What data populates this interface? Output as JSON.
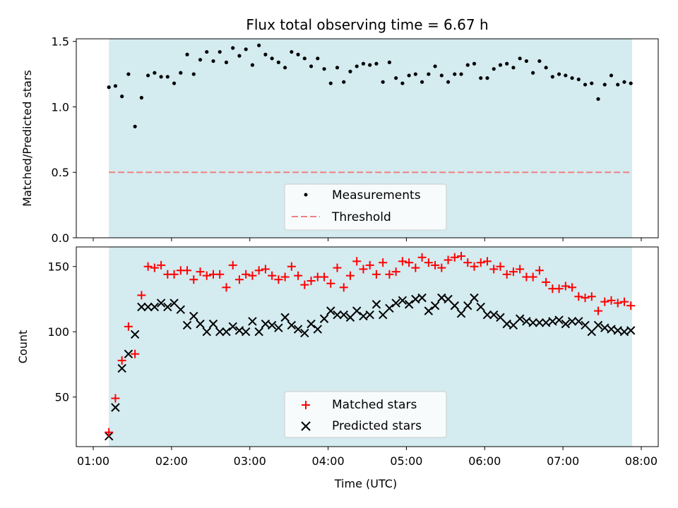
{
  "chart_data": [
    {
      "type": "scatter",
      "title": "Flux total observing time = 6.67 h",
      "xlabel": "",
      "ylabel": "Matched/Predicted stars",
      "xlim": [
        "01:00",
        "08:00"
      ],
      "ylim": [
        0,
        1.5
      ],
      "yticks": [
        "0.0",
        "0.5",
        "1.0",
        "1.5"
      ],
      "shaded_interval": [
        "01:12",
        "07:53"
      ],
      "shade_color": "#d4ebf0",
      "threshold": {
        "name": "Threshold",
        "value": 0.5,
        "color": "#f08080",
        "style": "dashed"
      },
      "legend": [
        "Measurements",
        "Threshold"
      ],
      "legend_position": "lower center",
      "series": [
        {
          "name": "Measurements",
          "color": "#000000",
          "x": [
            "01:12",
            "01:17",
            "01:22",
            "01:27",
            "01:32",
            "01:37",
            "01:42",
            "01:47",
            "01:52",
            "01:57",
            "02:02",
            "02:07",
            "02:12",
            "02:17",
            "02:22",
            "02:27",
            "02:32",
            "02:37",
            "02:42",
            "02:47",
            "02:52",
            "02:57",
            "03:02",
            "03:07",
            "03:12",
            "03:17",
            "03:22",
            "03:27",
            "03:32",
            "03:37",
            "03:42",
            "03:47",
            "03:52",
            "03:57",
            "04:02",
            "04:07",
            "04:12",
            "04:17",
            "04:22",
            "04:27",
            "04:32",
            "04:37",
            "04:42",
            "04:47",
            "04:52",
            "04:57",
            "05:02",
            "05:07",
            "05:12",
            "05:17",
            "05:22",
            "05:27",
            "05:32",
            "05:37",
            "05:42",
            "05:47",
            "05:52",
            "05:57",
            "06:02",
            "06:07",
            "06:12",
            "06:17",
            "06:22",
            "06:27",
            "06:32",
            "06:37",
            "06:42",
            "06:47",
            "06:52",
            "06:57",
            "07:02",
            "07:07",
            "07:12",
            "07:17",
            "07:22",
            "07:27",
            "07:32",
            "07:37",
            "07:42",
            "07:47",
            "07:52"
          ],
          "y": [
            1.15,
            1.16,
            1.08,
            1.25,
            0.85,
            1.07,
            1.24,
            1.26,
            1.23,
            1.23,
            1.18,
            1.26,
            1.4,
            1.25,
            1.36,
            1.42,
            1.35,
            1.42,
            1.34,
            1.45,
            1.39,
            1.44,
            1.32,
            1.47,
            1.4,
            1.37,
            1.34,
            1.3,
            1.42,
            1.4,
            1.37,
            1.31,
            1.37,
            1.29,
            1.18,
            1.3,
            1.19,
            1.27,
            1.31,
            1.33,
            1.32,
            1.33,
            1.19,
            1.34,
            1.22,
            1.18,
            1.24,
            1.25,
            1.19,
            1.25,
            1.31,
            1.24,
            1.19,
            1.25,
            1.25,
            1.32,
            1.33,
            1.22,
            1.22,
            1.29,
            1.32,
            1.33,
            1.3,
            1.37,
            1.35,
            1.26,
            1.35,
            1.3,
            1.23,
            1.25,
            1.24,
            1.22,
            1.21,
            1.17,
            1.18,
            1.06,
            1.17,
            1.24,
            1.17,
            1.19,
            1.18
          ]
        }
      ]
    },
    {
      "type": "scatter",
      "title": "",
      "xlabel": "Time (UTC)",
      "ylabel": "Count",
      "xlim": [
        "01:00",
        "08:00"
      ],
      "xticks": [
        "01:00",
        "02:00",
        "03:00",
        "04:00",
        "05:00",
        "06:00",
        "07:00",
        "08:00"
      ],
      "ylim": [
        12,
        165
      ],
      "yticks": [
        "50",
        "100",
        "150"
      ],
      "shaded_interval": [
        "01:12",
        "07:53"
      ],
      "shade_color": "#d4ebf0",
      "legend": [
        "Matched stars",
        "Predicted stars"
      ],
      "legend_position": "lower center",
      "series": [
        {
          "name": "Matched stars",
          "marker": "plus",
          "color": "#ff0000",
          "x": [
            "01:12",
            "01:17",
            "01:22",
            "01:27",
            "01:32",
            "01:37",
            "01:42",
            "01:47",
            "01:52",
            "01:57",
            "02:02",
            "02:07",
            "02:12",
            "02:17",
            "02:22",
            "02:27",
            "02:32",
            "02:37",
            "02:42",
            "02:47",
            "02:52",
            "02:57",
            "03:02",
            "03:07",
            "03:12",
            "03:17",
            "03:22",
            "03:27",
            "03:32",
            "03:37",
            "03:42",
            "03:47",
            "03:52",
            "03:57",
            "04:02",
            "04:07",
            "04:12",
            "04:17",
            "04:22",
            "04:27",
            "04:32",
            "04:37",
            "04:42",
            "04:47",
            "04:52",
            "04:57",
            "05:02",
            "05:07",
            "05:12",
            "05:17",
            "05:22",
            "05:27",
            "05:32",
            "05:37",
            "05:42",
            "05:47",
            "05:52",
            "05:57",
            "06:02",
            "06:07",
            "06:12",
            "06:17",
            "06:22",
            "06:27",
            "06:32",
            "06:37",
            "06:42",
            "06:47",
            "06:52",
            "06:57",
            "07:02",
            "07:07",
            "07:12",
            "07:17",
            "07:22",
            "07:27",
            "07:32",
            "07:37",
            "07:42",
            "07:47",
            "07:52"
          ],
          "y": [
            23,
            49,
            78,
            104,
            83,
            128,
            150,
            149,
            151,
            144,
            144,
            147,
            147,
            140,
            146,
            143,
            144,
            144,
            134,
            151,
            140,
            144,
            143,
            147,
            148,
            143,
            140,
            142,
            150,
            143,
            136,
            139,
            142,
            142,
            137,
            149,
            134,
            143,
            154,
            148,
            151,
            144,
            153,
            144,
            146,
            154,
            153,
            149,
            157,
            153,
            151,
            149,
            155,
            157,
            158,
            153,
            150,
            153,
            154,
            148,
            150,
            144,
            146,
            148,
            142,
            142,
            147,
            138,
            133,
            133,
            135,
            134,
            127,
            126,
            127,
            116,
            123,
            124,
            122,
            123,
            120
          ]
        },
        {
          "name": "Predicted stars",
          "marker": "x",
          "color": "#000000",
          "x": [
            "01:12",
            "01:17",
            "01:22",
            "01:27",
            "01:32",
            "01:37",
            "01:42",
            "01:47",
            "01:52",
            "01:57",
            "02:02",
            "02:07",
            "02:12",
            "02:17",
            "02:22",
            "02:27",
            "02:32",
            "02:37",
            "02:42",
            "02:47",
            "02:52",
            "02:57",
            "03:02",
            "03:07",
            "03:12",
            "03:17",
            "03:22",
            "03:27",
            "03:32",
            "03:37",
            "03:42",
            "03:47",
            "03:52",
            "03:57",
            "04:02",
            "04:07",
            "04:12",
            "04:17",
            "04:22",
            "04:27",
            "04:32",
            "04:37",
            "04:42",
            "04:47",
            "04:52",
            "04:57",
            "05:02",
            "05:07",
            "05:12",
            "05:17",
            "05:22",
            "05:27",
            "05:32",
            "05:37",
            "05:42",
            "05:47",
            "05:52",
            "05:57",
            "06:02",
            "06:07",
            "06:12",
            "06:17",
            "06:22",
            "06:27",
            "06:32",
            "06:37",
            "06:42",
            "06:47",
            "06:52",
            "06:57",
            "07:02",
            "07:07",
            "07:12",
            "07:17",
            "07:22",
            "07:27",
            "07:32",
            "07:37",
            "07:42",
            "07:47",
            "07:52"
          ],
          "y": [
            20,
            42,
            72,
            83,
            98,
            119,
            119,
            119,
            122,
            119,
            122,
            117,
            105,
            112,
            106,
            100,
            106,
            100,
            100,
            104,
            101,
            100,
            108,
            100,
            106,
            105,
            103,
            111,
            105,
            102,
            99,
            106,
            102,
            110,
            116,
            113,
            113,
            111,
            116,
            112,
            113,
            121,
            113,
            118,
            122,
            124,
            121,
            125,
            126,
            116,
            120,
            126,
            125,
            120,
            114,
            120,
            126,
            119,
            113,
            113,
            111,
            106,
            105,
            110,
            108,
            107,
            107,
            107,
            108,
            109,
            106,
            108,
            108,
            105,
            100,
            105,
            103,
            102,
            101,
            100,
            101
          ]
        }
      ]
    }
  ]
}
